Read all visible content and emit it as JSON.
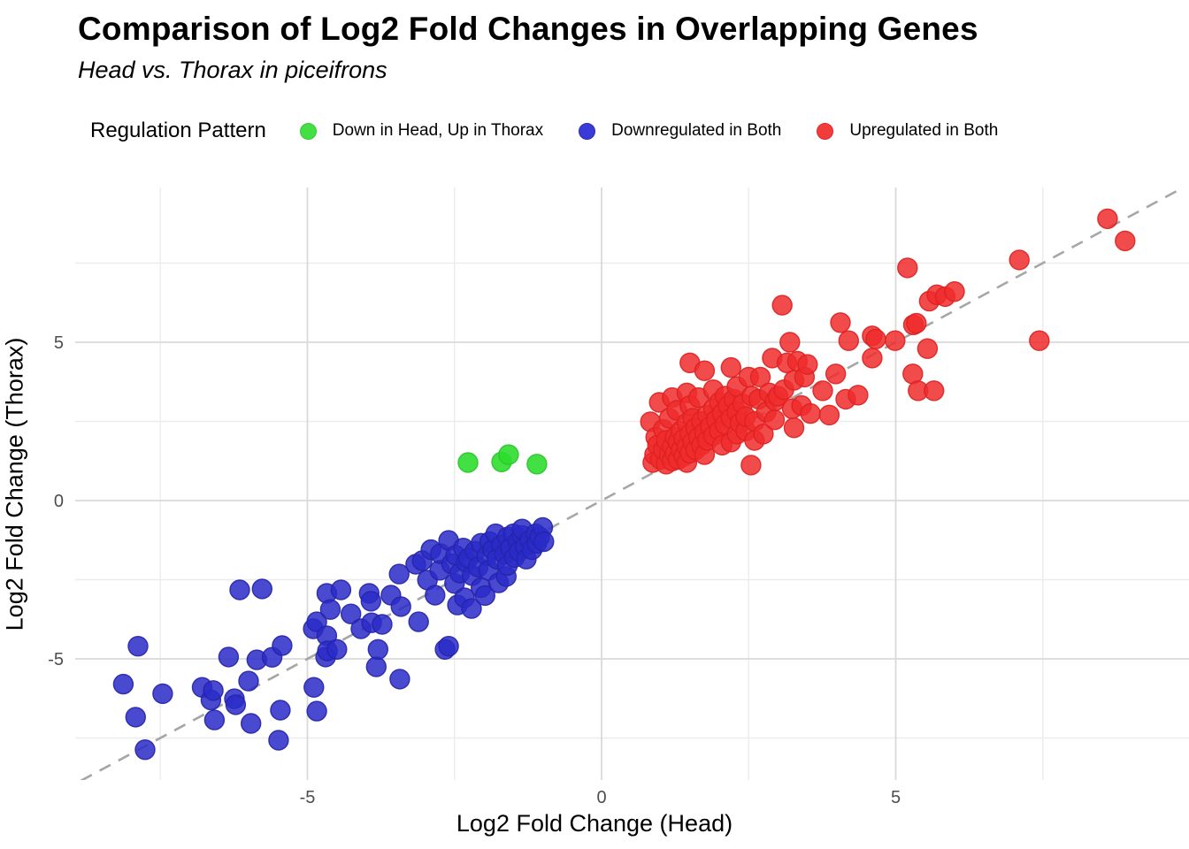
{
  "header": {
    "title": "Comparison of Log2 Fold Changes in Overlapping Genes",
    "subtitle": "Head vs. Thorax in piceifrons"
  },
  "legend": {
    "title": "Regulation Pattern",
    "items": [
      {
        "label": "Down in Head, Up in Thorax",
        "color": "#43df43",
        "stroke": "#36c936"
      },
      {
        "label": "Downregulated in Both",
        "color": "#3a3ad8",
        "stroke": "#2c2cb4"
      },
      {
        "label": "Upregulated in Both",
        "color": "#f23c3c",
        "stroke": "#df2a2a"
      }
    ]
  },
  "colors": {
    "background": "#ffffff",
    "grid_major": "#d9d9d9",
    "grid_minor": "#ececec",
    "tick_text": "#4d4d4d",
    "identity_line": "#a6a6a6"
  },
  "chart_data": {
    "type": "scatter",
    "title": "Comparison of Log2 Fold Changes in Overlapping Genes",
    "subtitle": "Head vs. Thorax in piceifrons",
    "xlabel": "Log2 Fold Change (Head)",
    "ylabel": "Log2 Fold Change (Thorax)",
    "xlim": [
      -8.95,
      9.95
    ],
    "ylim": [
      -8.85,
      9.9
    ],
    "x_ticks": [
      -5,
      0,
      5
    ],
    "y_ticks": [
      -5,
      0,
      5
    ],
    "x_minor_ticks": [
      -7.5,
      -2.5,
      2.5,
      7.5
    ],
    "y_minor_ticks": [
      -7.5,
      -2.5,
      2.5,
      7.5
    ],
    "grid": true,
    "legend_position": "top",
    "identity_line": {
      "equation": "y = x",
      "style": "dashed",
      "color": "#a6a6a6"
    },
    "series": [
      {
        "name": "Down in Head, Up in Thorax",
        "fill": "#2edd2e",
        "stroke": "#29c429",
        "fill_opacity": 0.9,
        "points": [
          [
            -2.27,
            1.2
          ],
          [
            -1.7,
            1.22
          ],
          [
            -1.58,
            1.45
          ],
          [
            -1.1,
            1.15
          ]
        ]
      },
      {
        "name": "Downregulated in Both",
        "fill": "#2a2ac8",
        "stroke": "#2424a8",
        "fill_opacity": 0.85,
        "points": [
          [
            -8.13,
            -5.8
          ],
          [
            -7.92,
            -6.84
          ],
          [
            -7.88,
            -4.6
          ],
          [
            -7.76,
            -7.87
          ],
          [
            -7.46,
            -6.1
          ],
          [
            -6.79,
            -5.9
          ],
          [
            -6.64,
            -6.3
          ],
          [
            -6.6,
            -6.0
          ],
          [
            -6.58,
            -6.93
          ],
          [
            -6.34,
            -4.94
          ],
          [
            -6.24,
            -6.26
          ],
          [
            -6.22,
            -6.45
          ],
          [
            -6.15,
            -2.82
          ],
          [
            -6.0,
            -5.7
          ],
          [
            -5.96,
            -7.04
          ],
          [
            -5.86,
            -5.03
          ],
          [
            -5.77,
            -2.79
          ],
          [
            -5.6,
            -4.95
          ],
          [
            -5.49,
            -7.57
          ],
          [
            -5.46,
            -6.62
          ],
          [
            -5.43,
            -4.58
          ],
          [
            -4.9,
            -4.05
          ],
          [
            -4.89,
            -5.9
          ],
          [
            -4.84,
            -6.65
          ],
          [
            -4.84,
            -3.83
          ],
          [
            -4.69,
            -4.94
          ],
          [
            -4.67,
            -4.27
          ],
          [
            -4.67,
            -2.93
          ],
          [
            -4.66,
            -4.75
          ],
          [
            -4.61,
            -3.44
          ],
          [
            -4.5,
            -4.7
          ],
          [
            -4.43,
            -2.82
          ],
          [
            -4.26,
            -3.58
          ],
          [
            -4.09,
            -4.05
          ],
          [
            -3.95,
            -2.93
          ],
          [
            -3.92,
            -3.18
          ],
          [
            -3.91,
            -3.86
          ],
          [
            -3.83,
            -5.25
          ],
          [
            -3.8,
            -4.7
          ],
          [
            -3.73,
            -3.91
          ],
          [
            -3.58,
            -2.99
          ],
          [
            -3.44,
            -2.32
          ],
          [
            -3.43,
            -5.64
          ],
          [
            -3.41,
            -3.35
          ],
          [
            -3.16,
            -2.01
          ],
          [
            -3.11,
            -3.83
          ],
          [
            -3.05,
            -1.9
          ],
          [
            -2.96,
            -2.51
          ],
          [
            -2.9,
            -1.55
          ],
          [
            -2.83,
            -2.99
          ],
          [
            -2.75,
            -2.2
          ],
          [
            -2.74,
            -1.68
          ],
          [
            -2.66,
            -4.7
          ],
          [
            -2.6,
            -4.6
          ],
          [
            -2.6,
            -1.26
          ],
          [
            -2.55,
            -2.0
          ],
          [
            -2.5,
            -2.62
          ],
          [
            -2.48,
            -1.73
          ],
          [
            -2.45,
            -3.3
          ],
          [
            -2.41,
            -2.29
          ],
          [
            -2.35,
            -1.5
          ],
          [
            -2.33,
            -3.07
          ],
          [
            -2.3,
            -1.95
          ],
          [
            -2.26,
            -1.82
          ],
          [
            -2.21,
            -3.41
          ],
          [
            -2.2,
            -2.37
          ],
          [
            -2.15,
            -1.6
          ],
          [
            -2.1,
            -2.1
          ],
          [
            -2.05,
            -2.75
          ],
          [
            -2.05,
            -1.35
          ],
          [
            -1.98,
            -3.0
          ],
          [
            -1.95,
            -1.75
          ],
          [
            -1.92,
            -2.2
          ],
          [
            -1.9,
            -1.3
          ],
          [
            -1.85,
            -1.55
          ],
          [
            -1.8,
            -1.05
          ],
          [
            -1.78,
            -1.85
          ],
          [
            -1.75,
            -2.6
          ],
          [
            -1.7,
            -1.4
          ],
          [
            -1.65,
            -1.7
          ],
          [
            -1.62,
            -2.4
          ],
          [
            -1.6,
            -2.05
          ],
          [
            -1.6,
            -1.15
          ],
          [
            -1.55,
            -1.5
          ],
          [
            -1.5,
            -1.05
          ],
          [
            -1.48,
            -1.8
          ],
          [
            -1.42,
            -1.3
          ],
          [
            -1.4,
            -1.6
          ],
          [
            -1.35,
            -1.1
          ],
          [
            -1.35,
            -0.9
          ],
          [
            -1.3,
            -1.45
          ],
          [
            -1.28,
            -1.85
          ],
          [
            -1.22,
            -1.25
          ],
          [
            -1.18,
            -1.55
          ],
          [
            -1.12,
            -1.05
          ],
          [
            -1.1,
            -1.35
          ],
          [
            -1.05,
            -1.15
          ],
          [
            -1.0,
            -0.85
          ],
          [
            -0.98,
            -1.3
          ]
        ]
      },
      {
        "name": "Upregulated in Both",
        "fill": "#f02c2c",
        "stroke": "#dd2020",
        "fill_opacity": 0.85,
        "points": [
          [
            0.83,
            2.49
          ],
          [
            0.87,
            1.2
          ],
          [
            0.9,
            1.45
          ],
          [
            0.92,
            2.0
          ],
          [
            0.95,
            1.75
          ],
          [
            0.98,
            3.1
          ],
          [
            1.0,
            1.3
          ],
          [
            1.05,
            1.6
          ],
          [
            1.05,
            2.25
          ],
          [
            1.1,
            1.15
          ],
          [
            1.1,
            1.9
          ],
          [
            1.15,
            1.45
          ],
          [
            1.15,
            2.6
          ],
          [
            1.2,
            1.25
          ],
          [
            1.2,
            1.7
          ],
          [
            1.2,
            3.25
          ],
          [
            1.25,
            1.5
          ],
          [
            1.25,
            2.0
          ],
          [
            1.28,
            2.85
          ],
          [
            1.3,
            1.3
          ],
          [
            1.3,
            1.85
          ],
          [
            1.35,
            1.6
          ],
          [
            1.35,
            2.2
          ],
          [
            1.4,
            1.4
          ],
          [
            1.4,
            1.95
          ],
          [
            1.45,
            1.2
          ],
          [
            1.45,
            1.7
          ],
          [
            1.45,
            2.45
          ],
          [
            1.45,
            3.4
          ],
          [
            1.5,
            1.5
          ],
          [
            1.5,
            2.1
          ],
          [
            1.5,
            3.0
          ],
          [
            1.5,
            4.35
          ],
          [
            1.55,
            1.85
          ],
          [
            1.55,
            2.6
          ],
          [
            1.6,
            1.6
          ],
          [
            1.6,
            2.3
          ],
          [
            1.65,
            2.0
          ],
          [
            1.65,
            3.25
          ],
          [
            1.7,
            1.75
          ],
          [
            1.7,
            2.5
          ],
          [
            1.75,
            1.45
          ],
          [
            1.75,
            2.15
          ],
          [
            1.75,
            4.1
          ],
          [
            1.8,
            1.9
          ],
          [
            1.8,
            2.7
          ],
          [
            1.85,
            2.35
          ],
          [
            1.9,
            2.05
          ],
          [
            1.9,
            2.9
          ],
          [
            1.9,
            3.5
          ],
          [
            1.95,
            2.55
          ],
          [
            2.0,
            2.2
          ],
          [
            2.0,
            3.1
          ],
          [
            2.05,
            1.75
          ],
          [
            2.05,
            2.75
          ],
          [
            2.1,
            2.4
          ],
          [
            2.1,
            3.3
          ],
          [
            2.15,
            3.0
          ],
          [
            2.2,
            1.85
          ],
          [
            2.2,
            2.6
          ],
          [
            2.2,
            4.2
          ],
          [
            2.25,
            3.2
          ],
          [
            2.3,
            2.1
          ],
          [
            2.3,
            2.8
          ],
          [
            2.3,
            3.6
          ],
          [
            2.35,
            2.45
          ],
          [
            2.4,
            3.05
          ],
          [
            2.45,
            2.2
          ],
          [
            2.45,
            2.65
          ],
          [
            2.5,
            3.9
          ],
          [
            2.54,
            1.12
          ],
          [
            2.55,
            3.3
          ],
          [
            2.6,
            1.9
          ],
          [
            2.6,
            2.5
          ],
          [
            2.67,
            3.2
          ],
          [
            2.7,
            3.9
          ],
          [
            2.75,
            2.1
          ],
          [
            2.8,
            2.8
          ],
          [
            2.85,
            3.4
          ],
          [
            2.9,
            4.5
          ],
          [
            2.94,
            2.55
          ],
          [
            2.95,
            3.15
          ],
          [
            3.0,
            3.3
          ],
          [
            3.07,
            6.17
          ],
          [
            3.1,
            3.5
          ],
          [
            3.15,
            4.35
          ],
          [
            3.2,
            5.0
          ],
          [
            3.24,
            2.9
          ],
          [
            3.27,
            2.3
          ],
          [
            3.27,
            3.8
          ],
          [
            3.33,
            4.4
          ],
          [
            3.4,
            3.0
          ],
          [
            3.45,
            3.9
          ],
          [
            3.5,
            4.3
          ],
          [
            3.55,
            2.75
          ],
          [
            3.76,
            3.47
          ],
          [
            3.87,
            2.7
          ],
          [
            3.98,
            4.0
          ],
          [
            4.06,
            5.62
          ],
          [
            4.15,
            3.2
          ],
          [
            4.2,
            5.05
          ],
          [
            4.36,
            3.33
          ],
          [
            4.6,
            4.5
          ],
          [
            4.6,
            5.2
          ],
          [
            4.66,
            5.1
          ],
          [
            4.99,
            5.05
          ],
          [
            5.2,
            7.35
          ],
          [
            5.29,
            4.0
          ],
          [
            5.3,
            5.55
          ],
          [
            5.35,
            5.6
          ],
          [
            5.38,
            3.47
          ],
          [
            5.54,
            4.8
          ],
          [
            5.57,
            6.3
          ],
          [
            5.65,
            3.47
          ],
          [
            5.7,
            6.5
          ],
          [
            5.84,
            6.44
          ],
          [
            6.0,
            6.6
          ],
          [
            7.1,
            7.6
          ],
          [
            7.44,
            5.05
          ],
          [
            8.6,
            8.9
          ],
          [
            8.9,
            8.2
          ]
        ]
      }
    ]
  }
}
